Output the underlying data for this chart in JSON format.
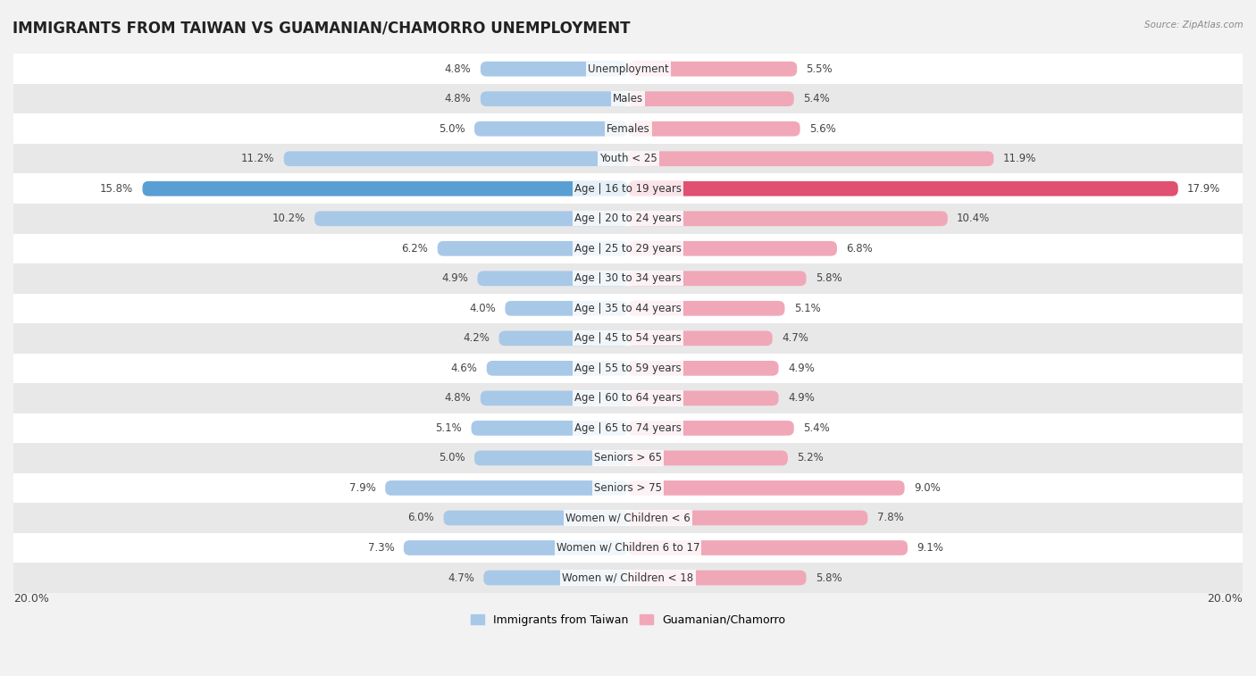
{
  "title": "IMMIGRANTS FROM TAIWAN VS GUAMANIAN/CHAMORRO UNEMPLOYMENT",
  "source": "Source: ZipAtlas.com",
  "categories": [
    "Unemployment",
    "Males",
    "Females",
    "Youth < 25",
    "Age | 16 to 19 years",
    "Age | 20 to 24 years",
    "Age | 25 to 29 years",
    "Age | 30 to 34 years",
    "Age | 35 to 44 years",
    "Age | 45 to 54 years",
    "Age | 55 to 59 years",
    "Age | 60 to 64 years",
    "Age | 65 to 74 years",
    "Seniors > 65",
    "Seniors > 75",
    "Women w/ Children < 6",
    "Women w/ Children 6 to 17",
    "Women w/ Children < 18"
  ],
  "taiwan_values": [
    4.8,
    4.8,
    5.0,
    11.2,
    15.8,
    10.2,
    6.2,
    4.9,
    4.0,
    4.2,
    4.6,
    4.8,
    5.1,
    5.0,
    7.9,
    6.0,
    7.3,
    4.7
  ],
  "guam_values": [
    5.5,
    5.4,
    5.6,
    11.9,
    17.9,
    10.4,
    6.8,
    5.8,
    5.1,
    4.7,
    4.9,
    4.9,
    5.4,
    5.2,
    9.0,
    7.8,
    9.1,
    5.8
  ],
  "taiwan_color": "#a8c8e8",
  "guam_color": "#f0a8b8",
  "taiwan_highlight_color": "#5a9fd4",
  "guam_highlight_color": "#e05070",
  "background_color": "#f2f2f2",
  "row_color_odd": "#ffffff",
  "row_color_even": "#e8e8e8",
  "axis_limit": 20.0,
  "legend_taiwan": "Immigrants from Taiwan",
  "legend_guam": "Guamanian/Chamorro",
  "title_fontsize": 12,
  "label_fontsize": 8.5,
  "value_fontsize": 8.5,
  "bar_height": 0.5
}
